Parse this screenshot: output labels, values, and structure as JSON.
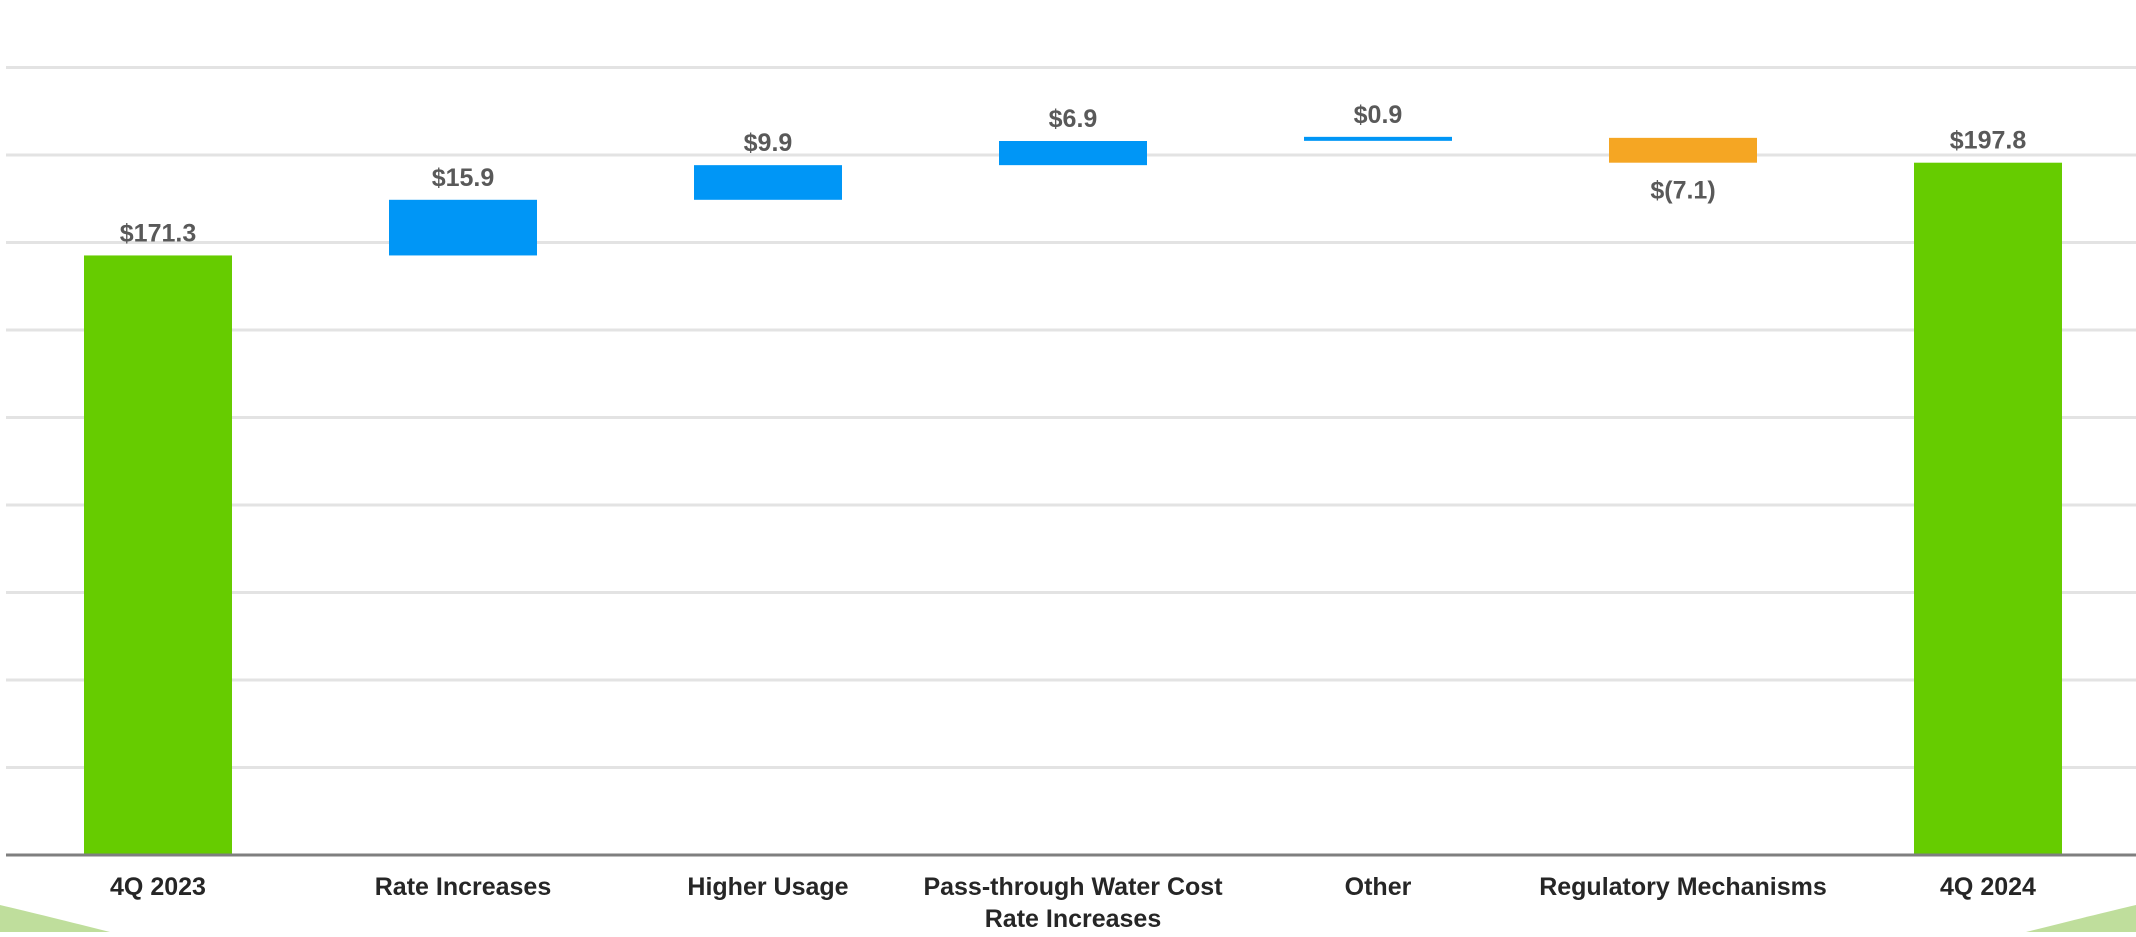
{
  "colors": {
    "increase": "#0096F6",
    "decrease": "#F5A623",
    "total": "#66CC00",
    "gridline": "#E3E3E3",
    "axis": "#7F7F7F",
    "label_text": "#595959",
    "category_text": "#262626",
    "decoration": "#8BC34A"
  },
  "chart_data": {
    "type": "bar",
    "subtype": "waterfall",
    "title": "",
    "xlabel": "",
    "ylabel": "",
    "ylim": [
      0,
      200
    ],
    "grid": true,
    "legend": "none",
    "categories": [
      [
        "4Q 2023"
      ],
      [
        "Rate Increases"
      ],
      [
        "Higher Usage"
      ],
      [
        "Pass-through Water Cost",
        "Rate Increases"
      ],
      [
        "Other"
      ],
      [
        "Regulatory Mechanisms"
      ],
      [
        "4Q 2024"
      ]
    ],
    "values": [
      171.3,
      15.9,
      9.9,
      6.9,
      0.9,
      -7.1,
      197.8
    ],
    "kinds": [
      "total",
      "increase",
      "increase",
      "increase",
      "increase",
      "decrease",
      "total"
    ],
    "labels": [
      "$171.3",
      "$15.9",
      "$9.9",
      "$6.9",
      "$0.9",
      "$(7.1)",
      "$197.8"
    ]
  }
}
